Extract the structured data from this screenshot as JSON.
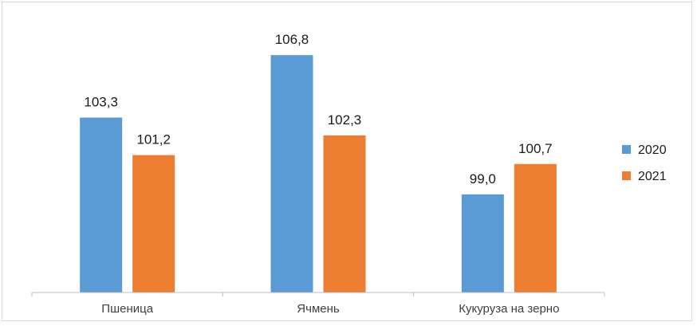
{
  "chart_data": {
    "type": "bar",
    "categories": [
      "Пшеница",
      "Ячмень",
      "Кукуруза на зерно"
    ],
    "series": [
      {
        "name": "2020",
        "color": "#5b9bd5",
        "values": [
          103.3,
          106.8,
          99.0
        ],
        "labels": [
          "103,3",
          "106,8",
          "99,0"
        ]
      },
      {
        "name": "2021",
        "color": "#ed7d31",
        "values": [
          101.2,
          102.3,
          100.7
        ],
        "labels": [
          "101,2",
          "102,3",
          "100,7"
        ]
      }
    ],
    "title": "",
    "xlabel": "",
    "ylabel": "",
    "ylim": [
      93.5,
      107.7
    ],
    "grid": false,
    "legend_position": "right"
  }
}
